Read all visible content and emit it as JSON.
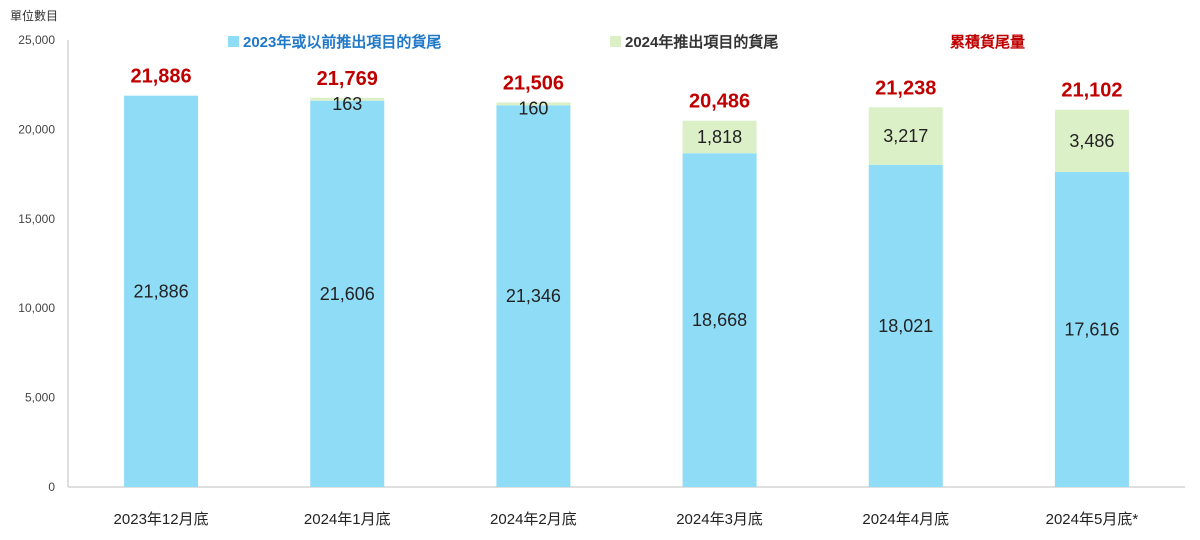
{
  "unit_label": "單位數目",
  "legend": [
    {
      "label": "2023年或以前推出項目的貨尾",
      "color": "#8fdcf7",
      "text_color": "#1f78c8"
    },
    {
      "label": "2024年推出項目的貨尾",
      "color": "#dcf0c8",
      "text_color": "#333333"
    },
    {
      "label": "累積貨尾量",
      "color": "#c00000",
      "text_color": "#c00000"
    }
  ],
  "chart_data": {
    "type": "bar",
    "stacked": true,
    "categories": [
      "2023年12月底",
      "2024年1月底",
      "2024年2月底",
      "2024年3月底",
      "2024年4月底",
      "2024年5月底*"
    ],
    "series": [
      {
        "name": "2023年或以前推出項目的貨尾",
        "values": [
          21886,
          21606,
          21346,
          18668,
          18021,
          17616
        ],
        "labels": [
          "21,886",
          "21,606",
          "21,346",
          "18,668",
          "18,021",
          "17,616"
        ],
        "color": "#8fdcf7"
      },
      {
        "name": "2024年推出項目的貨尾",
        "values": [
          0,
          163,
          160,
          1818,
          3217,
          3486
        ],
        "labels": [
          "",
          "163",
          "160",
          "1,818",
          "3,217",
          "3,486"
        ],
        "color": "#dcf0c8"
      }
    ],
    "totals": {
      "name": "累積貨尾量",
      "values": [
        21886,
        21769,
        21506,
        20486,
        21238,
        21102
      ],
      "labels": [
        "21,886",
        "21,769",
        "21,506",
        "20,486",
        "21,238",
        "21,102"
      ],
      "color": "#c00000"
    },
    "ylim": [
      0,
      25000
    ],
    "yticks": [
      0,
      5000,
      10000,
      15000,
      20000,
      25000
    ],
    "ytick_labels": [
      "0",
      "5,000",
      "10,000",
      "15,000",
      "20,000",
      "25,000"
    ],
    "grid": false,
    "legend_position": "top"
  }
}
